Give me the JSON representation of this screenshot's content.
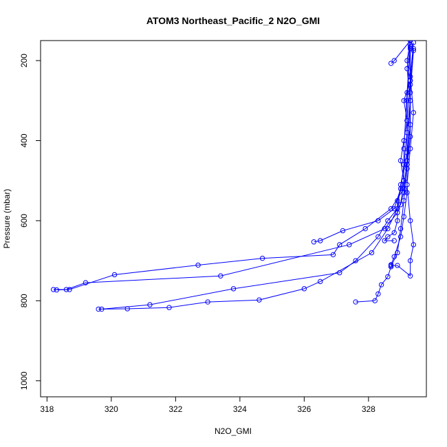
{
  "chart_data": {
    "type": "line",
    "title": "ATOM3 Northeast_Pacific_2 N2O_GMI",
    "xlabel": "N2O_GMI",
    "ylabel": "Pressure (mbar)",
    "xlim": [
      317.8,
      329.8
    ],
    "ylim": [
      1040,
      150
    ],
    "y_reversed": true,
    "x_ticks": [
      318,
      320,
      322,
      324,
      326,
      328
    ],
    "y_ticks": [
      200,
      400,
      600,
      800,
      1000
    ],
    "grid": false,
    "colors": {
      "series": "#0000ff",
      "axis": "#000000",
      "background": "#ffffff"
    },
    "marker": "open-circle",
    "series": [
      {
        "x": [
          329.3,
          329.2,
          329.3,
          329.1,
          329.2,
          329.1,
          329.0,
          329.1,
          328.9,
          328.9,
          328.8,
          328.6,
          328.5,
          328.8
        ],
        "y": [
          150,
          200,
          250,
          300,
          350,
          400,
          450,
          500,
          550,
          600,
          630,
          640,
          650,
          650
        ]
      },
      {
        "x": [
          329.3,
          329.2,
          329.3,
          329.2,
          329.1,
          329.0,
          328.8,
          328.3,
          327.2,
          326.5,
          326.3
        ],
        "y": [
          160,
          220,
          300,
          380,
          460,
          520,
          570,
          600,
          625,
          650,
          653
        ]
      },
      {
        "x": [
          329.3,
          329.3,
          329.2,
          329.2,
          329.1,
          328.7,
          327.9,
          327.1,
          326.9,
          324.7,
          322.7,
          320.1,
          318.7,
          318.3
        ],
        "y": [
          150,
          250,
          350,
          450,
          520,
          570,
          620,
          660,
          685,
          694,
          711,
          735,
          772,
          773
        ]
      },
      {
        "x": [
          329.4,
          329.3,
          329.3,
          329.2,
          329.1,
          328.9,
          328.5,
          327.4,
          323.4,
          319.2,
          318.6,
          318.2
        ],
        "y": [
          170,
          260,
          360,
          460,
          530,
          580,
          620,
          660,
          738,
          755,
          772,
          772
        ]
      },
      {
        "x": [
          329.3,
          329.2,
          329.1,
          329.1,
          329.0,
          328.6,
          328.3,
          327.6,
          327.1,
          323.8,
          321.2,
          319.7
        ],
        "y": [
          165,
          280,
          420,
          500,
          560,
          600,
          640,
          700,
          730,
          770,
          810,
          821
        ]
      },
      {
        "x": [
          329.3,
          329.2,
          329.2,
          329.0,
          328.9,
          328.6,
          328.1,
          326.5,
          326.0,
          324.6,
          323.0,
          321.8,
          320.5,
          319.6
        ],
        "y": [
          170,
          300,
          430,
          510,
          570,
          620,
          680,
          752,
          770,
          798,
          803,
          817,
          820,
          821
        ]
      },
      {
        "x": [
          329.3,
          329.3,
          329.2,
          329.1,
          329.0,
          328.9,
          328.7,
          328.6,
          328.4,
          328.3,
          328.2,
          327.6
        ],
        "y": [
          150,
          300,
          450,
          550,
          620,
          680,
          715,
          740,
          760,
          783,
          800,
          803
        ]
      },
      {
        "x": [
          329.4,
          329.3,
          329.4,
          329.3,
          329.2,
          329.3,
          329.4,
          329.3,
          329.3,
          328.9,
          328.7
        ],
        "y": [
          155,
          240,
          330,
          420,
          510,
          600,
          660,
          700,
          738,
          712,
          712
        ]
      },
      {
        "x": [
          329.4,
          329.3,
          329.3,
          329.2,
          329.2,
          329.1,
          329.0,
          328.8,
          328.7
        ],
        "y": [
          175,
          280,
          390,
          470,
          530,
          590,
          640,
          690,
          710
        ]
      },
      {
        "x": [
          329.3,
          328.8,
          328.7
        ],
        "y": [
          150,
          200,
          207
        ]
      }
    ]
  }
}
